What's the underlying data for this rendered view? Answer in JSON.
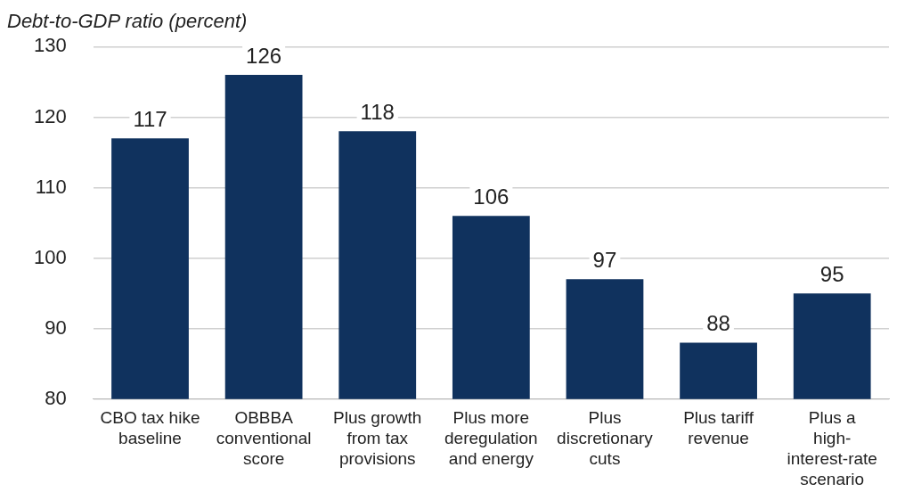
{
  "chart_data": {
    "type": "bar",
    "title": "Debt-to-GDP ratio (percent)",
    "categories": [
      "CBO tax hike baseline",
      "OBBBA conventional score",
      "Plus growth from tax provisions",
      "Plus more deregulation and energy",
      "Plus discretionary cuts",
      "Plus tariff revenue",
      "Plus a high-interest-rate scenario"
    ],
    "values": [
      117,
      126,
      118,
      106,
      97,
      88,
      95
    ],
    "color": "#10325e",
    "ylim": [
      80,
      130
    ],
    "yticks": [
      80,
      90,
      100,
      110,
      120,
      130
    ],
    "grid": "y",
    "data_labels": true,
    "legend": false
  }
}
